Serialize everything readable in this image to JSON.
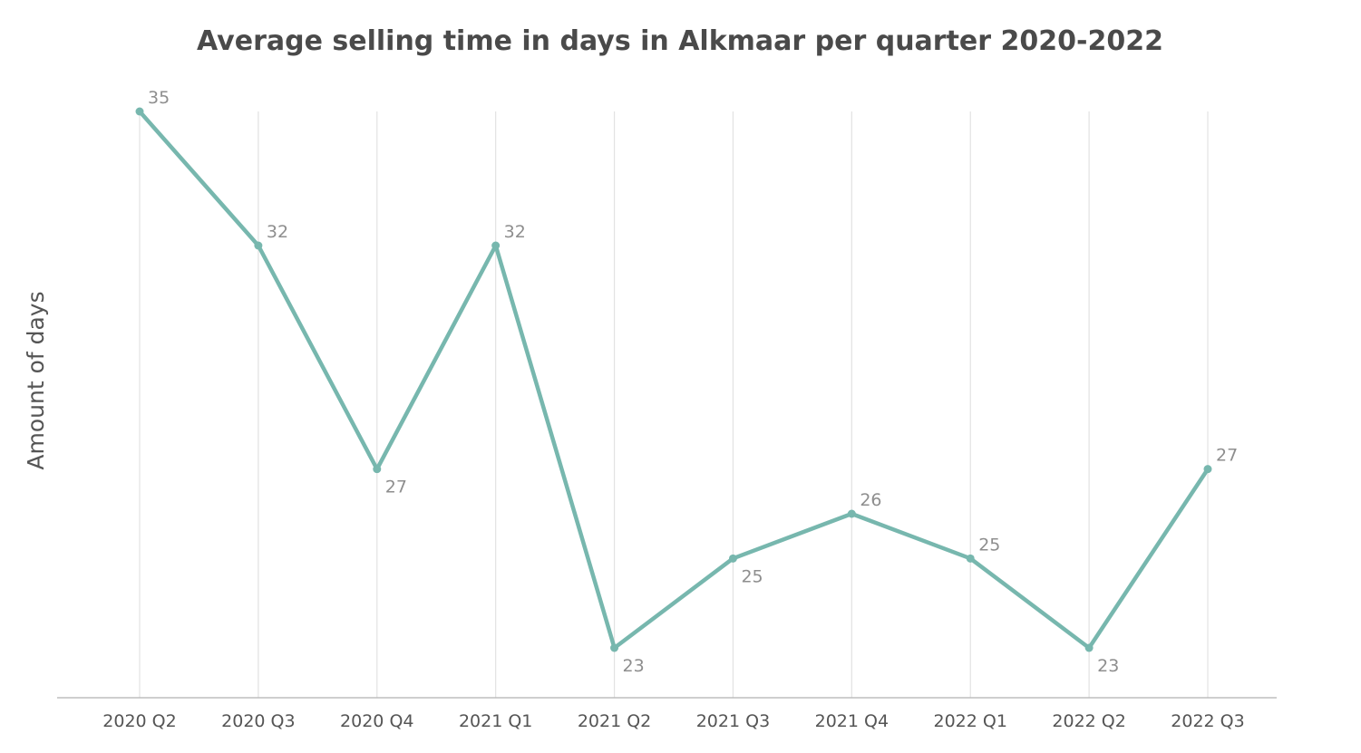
{
  "chart_data": {
    "type": "line",
    "title": "Average selling time in days in Alkmaar per quarter 2020-2022",
    "ylabel": "Amount of days",
    "xlabel": "",
    "categories": [
      "2020 Q2",
      "2020 Q3",
      "2020 Q4",
      "2021 Q1",
      "2021 Q2",
      "2021 Q3",
      "2021 Q4",
      "2022 Q1",
      "2022 Q2",
      "2022 Q3"
    ],
    "series": [
      {
        "values": [
          35,
          32,
          27,
          32,
          23,
          25,
          26,
          25,
          23,
          27
        ]
      }
    ],
    "label_position": [
      "above",
      "above",
      "below",
      "above",
      "below",
      "below",
      "above",
      "above",
      "below",
      "above"
    ],
    "grid": "vertical",
    "legend": "none",
    "colors": {
      "line": "#77b7ae",
      "data_label": "#8e8e8e",
      "gridline": "#e2e2e2",
      "axis": "#bdbdbd",
      "title": "#4a4a4a"
    }
  }
}
